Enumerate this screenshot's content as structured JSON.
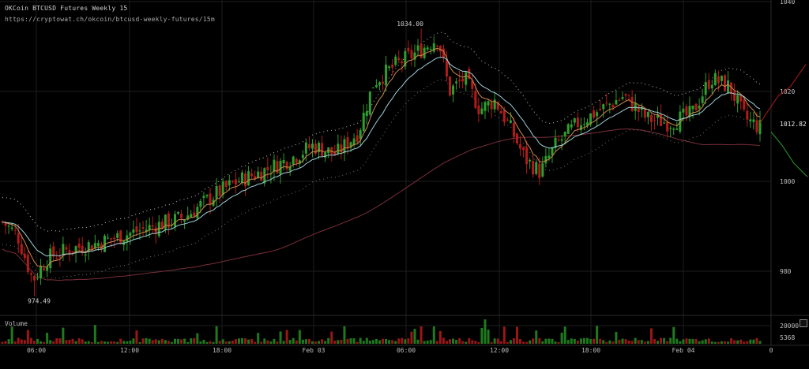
{
  "header": {
    "title": "OKCoin BTCUSD Futures Weekly 15",
    "url": "https://cryptowat.ch/okcoin/btcusd-weekly-futures/15m"
  },
  "volume_panel": {
    "label": "Volume",
    "tick_labels": [
      "20000",
      "5368"
    ]
  },
  "colors": {
    "background": "#000000",
    "grid": "#1e1e1e",
    "up": "#2e9e2e",
    "down": "#b31b1b",
    "ema_fast": "#c98a4b",
    "ema_slow": "#9ecfd6",
    "long_ma": "#7a2f3a",
    "dots": "#bdbdbd",
    "text": "#c8c8c8"
  },
  "chart_data": [
    {
      "type": "candlestick",
      "title": "OKCoin BTCUSD Futures Weekly 15",
      "ylim": [
        970,
        1040
      ],
      "y_ticks": [
        "1040",
        "1020",
        "1000",
        "980"
      ],
      "x_ticks": [
        "06:00",
        "12:00",
        "18:00",
        "Feb 03",
        "06:00",
        "12:00",
        "18:00",
        "Feb 04",
        "0"
      ],
      "grid": true,
      "annotations": [
        {
          "text": "1034.00",
          "value": 1034.0
        },
        {
          "text": "974.49",
          "value": 974.49
        }
      ],
      "last_price": {
        "text": "1012.82",
        "value": 1012.82
      },
      "close_path": [
        {
          "t": 0,
          "v": 991
        },
        {
          "t": 0.02,
          "v": 988
        },
        {
          "t": 0.04,
          "v": 978
        },
        {
          "t": 0.06,
          "v": 983
        },
        {
          "t": 0.09,
          "v": 985
        },
        {
          "t": 0.12,
          "v": 986
        },
        {
          "t": 0.16,
          "v": 988
        },
        {
          "t": 0.2,
          "v": 990
        },
        {
          "t": 0.24,
          "v": 992
        },
        {
          "t": 0.28,
          "v": 997
        },
        {
          "t": 0.31,
          "v": 1000
        },
        {
          "t": 0.34,
          "v": 1002
        },
        {
          "t": 0.38,
          "v": 1005
        },
        {
          "t": 0.41,
          "v": 1008
        },
        {
          "t": 0.44,
          "v": 1006
        },
        {
          "t": 0.47,
          "v": 1011
        },
        {
          "t": 0.49,
          "v": 1022
        },
        {
          "t": 0.52,
          "v": 1026
        },
        {
          "t": 0.55,
          "v": 1029
        },
        {
          "t": 0.575,
          "v": 1032
        },
        {
          "t": 0.59,
          "v": 1020
        },
        {
          "t": 0.61,
          "v": 1023
        },
        {
          "t": 0.63,
          "v": 1016
        },
        {
          "t": 0.65,
          "v": 1018
        },
        {
          "t": 0.67,
          "v": 1012
        },
        {
          "t": 0.69,
          "v": 1005
        },
        {
          "t": 0.71,
          "v": 1002
        },
        {
          "t": 0.73,
          "v": 1008
        },
        {
          "t": 0.76,
          "v": 1013
        },
        {
          "t": 0.79,
          "v": 1016
        },
        {
          "t": 0.82,
          "v": 1019
        },
        {
          "t": 0.85,
          "v": 1014
        },
        {
          "t": 0.88,
          "v": 1013
        },
        {
          "t": 0.91,
          "v": 1015
        },
        {
          "t": 0.935,
          "v": 1023
        },
        {
          "t": 0.96,
          "v": 1021
        },
        {
          "t": 0.98,
          "v": 1014
        },
        {
          "t": 1,
          "v": 1012
        }
      ],
      "series": [
        {
          "color": "#c98a4b",
          "values": []
        },
        {
          "color": "#9ecfd6",
          "values": []
        },
        {
          "color": "#7a2f3a",
          "values": []
        }
      ]
    },
    {
      "type": "bar",
      "title": "Volume",
      "y_ticks": [
        "20000",
        "5368"
      ],
      "ylim": [
        0,
        24000
      ]
    }
  ]
}
